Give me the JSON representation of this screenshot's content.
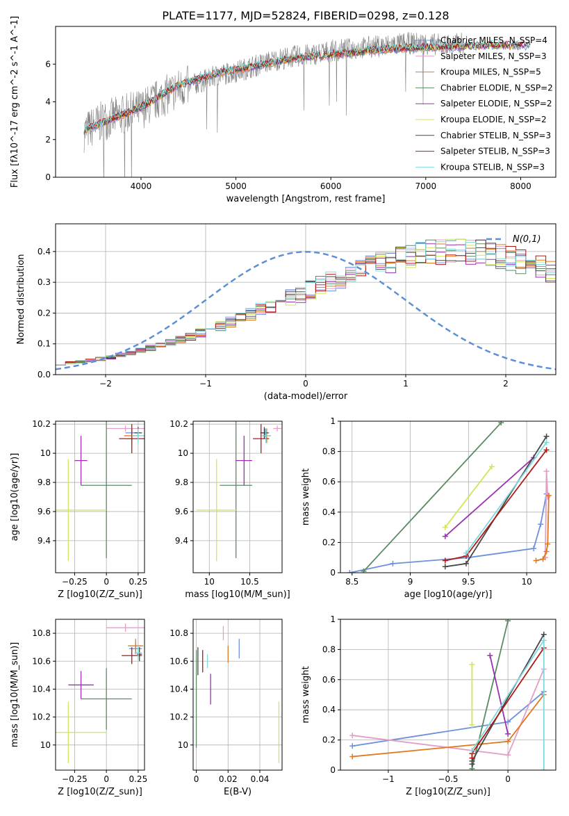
{
  "title": "PLATE=1177, MJD=52824, FIBERID=0298, z=0.128",
  "model_colors": {
    "Chabrier MILES": "#6e8fdc",
    "Salpeter MILES": "#e39ec8",
    "Kroupa MILES": "#e0781e",
    "Chabrier ELODIE": "#5a8a62",
    "Salpeter ELODIE": "#9a2fb0",
    "Kroupa ELODIE": "#cfe65a",
    "Chabrier STELIB": "#474747",
    "Salpeter STELIB": "#b01818",
    "Kroupa STELIB": "#7fd8dc"
  },
  "chart_data": [
    {
      "type": "line",
      "id": "spectrum",
      "title": "PLATE=1177, MJD=52824, FIBERID=0298, z=0.128",
      "xlabel": "wavelength [Angstrom, rest frame]",
      "ylabel": "Flux [fλ10^-17 erg cm^-2 s^-1 A^-1]",
      "xlim": [
        3100,
        8370
      ],
      "ylim": [
        0,
        8
      ],
      "xticks": [
        4000,
        5000,
        6000,
        7000,
        8000
      ],
      "yticks": [
        0,
        2,
        4,
        6
      ],
      "legend_location": "upper right",
      "legend": [
        "Chabrier MILES, N_SSP=4",
        "Salpeter MILES, N_SSP=3",
        "Kroupa MILES, N_SSP=5",
        "Chabrier ELODIE, N_SSP=2",
        "Salpeter ELODIE, N_SSP=2",
        "Kroupa ELODIE, N_SSP=2",
        "Chabrier STELIB, N_SSP=3",
        "Salpeter STELIB, N_SSP=3",
        "Kroupa STELIB, N_SSP=3"
      ],
      "data_series": {
        "name": "data",
        "color": "#808080",
        "x": [
          3400,
          3600,
          3800,
          4000,
          4200,
          4400,
          4600,
          4800,
          5000,
          5200,
          5400,
          5600,
          5800,
          6000,
          6200,
          6400,
          6600,
          6800,
          7000,
          7200,
          7400
        ],
        "y": [
          2.4,
          3.0,
          3.3,
          3.6,
          4.2,
          4.7,
          5.0,
          5.4,
          5.6,
          5.9,
          6.2,
          6.4,
          6.5,
          6.7,
          6.8,
          6.9,
          7.0,
          7.1,
          7.1,
          7.0,
          7.1
        ]
      },
      "model_curve": {
        "x": [
          3400,
          3600,
          3800,
          4000,
          4200,
          4400,
          4600,
          4800,
          5000,
          5200,
          5400,
          5600,
          5800,
          6000,
          6200,
          6400,
          6600,
          6800,
          7000,
          7200,
          7400,
          7600,
          7800,
          8000,
          8100
        ],
        "y": [
          2.5,
          2.9,
          3.3,
          3.7,
          4.3,
          4.9,
          5.2,
          5.5,
          5.7,
          5.9,
          6.1,
          6.3,
          6.4,
          6.5,
          6.6,
          6.7,
          6.8,
          6.85,
          6.9,
          6.9,
          6.95,
          7.0,
          7.0,
          7.0,
          7.0
        ]
      }
    },
    {
      "type": "histogram",
      "id": "residuals",
      "xlabel": "(data-model)/error",
      "ylabel": "Normed distribution",
      "xlim": [
        -2.5,
        2.5
      ],
      "ylim": [
        0,
        0.49
      ],
      "xticks": [
        -2,
        -1,
        0,
        1,
        2
      ],
      "yticks": [
        0.0,
        0.1,
        0.2,
        0.3,
        0.4
      ],
      "reference_curve": "N(0,1)",
      "legend": [
        "N(0,1)"
      ],
      "legend_location": "upper right",
      "bin_width": 0.1,
      "base_values": [
        0.035,
        0.038,
        0.042,
        0.046,
        0.051,
        0.057,
        0.063,
        0.07,
        0.078,
        0.086,
        0.095,
        0.104,
        0.114,
        0.125,
        0.136,
        0.148,
        0.16,
        0.172,
        0.185,
        0.198,
        0.211,
        0.224,
        0.237,
        0.25,
        0.263,
        0.276,
        0.289,
        0.302,
        0.314,
        0.326,
        0.338,
        0.349,
        0.36,
        0.37,
        0.378,
        0.386,
        0.392,
        0.396,
        0.399,
        0.4,
        0.4,
        0.398,
        0.395,
        0.39,
        0.384,
        0.376,
        0.368,
        0.358,
        0.348,
        0.337
      ]
    },
    {
      "type": "scatter",
      "id": "age_vs_Z",
      "xlabel": "Z [log10(Z/Z_sun)]",
      "ylabel": "age [log10(age/yr)]",
      "xlim": [
        -0.4,
        0.3
      ],
      "ylim": [
        9.18,
        10.22
      ],
      "xticks": [
        -0.25,
        0.0,
        0.25
      ],
      "yticks": [
        9.4,
        9.6,
        9.8,
        10.0,
        10.2
      ],
      "points": [
        {
          "model": "Chabrier MILES",
          "x": 0.2,
          "y": 10.14,
          "xerr": 0.05,
          "yerr": 0.03
        },
        {
          "model": "Salpeter MILES",
          "x": 0.15,
          "y": 10.17,
          "xerr": 0.15,
          "yerr": 0.02
        },
        {
          "model": "Kroupa MILES",
          "x": 0.2,
          "y": 10.12,
          "xerr": 0.06,
          "yerr": 0.05
        },
        {
          "model": "Chabrier ELODIE",
          "x": 0.0,
          "y": 9.78,
          "xerr": 0.2,
          "yerr": 0.5
        },
        {
          "model": "Salpeter ELODIE",
          "x": -0.2,
          "y": 9.95,
          "xerr": 0.05,
          "yerr": 0.17
        },
        {
          "model": "Kroupa ELODIE",
          "x": -0.3,
          "y": 9.61,
          "xerr": 0.3,
          "yerr": 0.35
        },
        {
          "model": "Chabrier STELIB",
          "x": 0.25,
          "y": 10.14,
          "xerr": 0.03,
          "yerr": 0.04
        },
        {
          "model": "Salpeter STELIB",
          "x": 0.2,
          "y": 10.1,
          "xerr": 0.1,
          "yerr": 0.1
        },
        {
          "model": "Kroupa STELIB",
          "x": 0.25,
          "y": 10.12,
          "xerr": 0.05,
          "yerr": 0.05
        }
      ]
    },
    {
      "type": "scatter",
      "id": "age_vs_mass",
      "xlabel": "mass [log10(M/M_sun)]",
      "ylabel": "",
      "xlim": [
        9.8,
        10.9
      ],
      "ylim": [
        9.18,
        10.22
      ],
      "xticks": [
        10.0,
        10.5
      ],
      "yticks": [
        9.4,
        9.6,
        9.8,
        10.0,
        10.2
      ],
      "points": [
        {
          "model": "Chabrier MILES",
          "x": 10.69,
          "y": 10.14,
          "xerr": 0.05,
          "yerr": 0.03
        },
        {
          "model": "Salpeter MILES",
          "x": 10.84,
          "y": 10.17,
          "xerr": 0.05,
          "yerr": 0.02
        },
        {
          "model": "Kroupa MILES",
          "x": 10.71,
          "y": 10.12,
          "xerr": 0.05,
          "yerr": 0.05
        },
        {
          "model": "Chabrier ELODIE",
          "x": 10.33,
          "y": 9.78,
          "xerr": 0.2,
          "yerr": 0.5
        },
        {
          "model": "Salpeter ELODIE",
          "x": 10.43,
          "y": 9.95,
          "xerr": 0.1,
          "yerr": 0.17
        },
        {
          "model": "Kroupa ELODIE",
          "x": 10.09,
          "y": 9.61,
          "xerr": 0.25,
          "yerr": 0.35
        },
        {
          "model": "Chabrier STELIB",
          "x": 10.68,
          "y": 10.14,
          "xerr": 0.05,
          "yerr": 0.04
        },
        {
          "model": "Salpeter STELIB",
          "x": 10.64,
          "y": 10.1,
          "xerr": 0.1,
          "yerr": 0.1
        },
        {
          "model": "Kroupa STELIB",
          "x": 10.7,
          "y": 10.12,
          "xerr": 0.05,
          "yerr": 0.05
        }
      ]
    },
    {
      "type": "line",
      "id": "massweight_vs_age",
      "xlabel": "age [log10(age/yr)]",
      "ylabel": "mass weight",
      "xlim": [
        8.4,
        10.25
      ],
      "ylim": [
        0,
        1
      ],
      "xticks": [
        8.5,
        9.0,
        9.5,
        10.0
      ],
      "yticks": [
        0.0,
        0.2,
        0.4,
        0.6,
        0.8,
        1.0
      ],
      "series": [
        {
          "model": "Chabrier MILES",
          "x": [
            8.48,
            8.85,
            9.5,
            10.06,
            10.12,
            10.17
          ],
          "y": [
            0.0,
            0.06,
            0.1,
            0.16,
            0.32,
            0.52
          ]
        },
        {
          "model": "Salpeter MILES",
          "x": [
            10.16,
            10.17,
            10.18
          ],
          "y": [
            0.1,
            0.67,
            0.5
          ]
        },
        {
          "model": "Kroupa MILES",
          "x": [
            10.08,
            10.14,
            10.17,
            10.18,
            10.19
          ],
          "y": [
            0.08,
            0.09,
            0.14,
            0.19,
            0.51
          ]
        },
        {
          "model": "Chabrier ELODIE",
          "x": [
            8.6,
            9.78
          ],
          "y": [
            0.01,
            0.99
          ]
        },
        {
          "model": "Salpeter ELODIE",
          "x": [
            9.3,
            10.06
          ],
          "y": [
            0.24,
            0.76
          ]
        },
        {
          "model": "Kroupa ELODIE",
          "x": [
            9.3,
            9.7
          ],
          "y": [
            0.3,
            0.7
          ]
        },
        {
          "model": "Chabrier STELIB",
          "x": [
            9.3,
            9.48,
            10.17
          ],
          "y": [
            0.04,
            0.06,
            0.9
          ]
        },
        {
          "model": "Salpeter STELIB",
          "x": [
            9.3,
            9.48,
            10.17
          ],
          "y": [
            0.08,
            0.11,
            0.81
          ]
        },
        {
          "model": "Kroupa STELIB",
          "x": [
            9.48,
            10.17
          ],
          "y": [
            0.13,
            0.86
          ]
        }
      ]
    },
    {
      "type": "scatter",
      "id": "mass_vs_Z",
      "xlabel": "Z [log10(Z/Z_sun)]",
      "ylabel": "mass [log10(M/M_sun)]",
      "xlim": [
        -0.4,
        0.3
      ],
      "ylim": [
        9.82,
        10.9
      ],
      "xticks": [
        -0.25,
        0.0,
        0.25
      ],
      "yticks": [
        10.0,
        10.2,
        10.4,
        10.6,
        10.8
      ],
      "points": [
        {
          "model": "Chabrier MILES",
          "x": 0.23,
          "y": 10.69,
          "xerr": 0.05,
          "yerr": 0.04
        },
        {
          "model": "Salpeter MILES",
          "x": 0.15,
          "y": 10.84,
          "xerr": 0.15,
          "yerr": 0.03
        },
        {
          "model": "Kroupa MILES",
          "x": 0.23,
          "y": 10.71,
          "xerr": 0.06,
          "yerr": 0.05
        },
        {
          "model": "Chabrier ELODIE",
          "x": 0.0,
          "y": 10.33,
          "xerr": 0.2,
          "yerr": 0.22
        },
        {
          "model": "Salpeter ELODIE",
          "x": -0.2,
          "y": 10.43,
          "xerr": 0.1,
          "yerr": 0.1
        },
        {
          "model": "Kroupa ELODIE",
          "x": -0.3,
          "y": 10.09,
          "xerr": 0.3,
          "yerr": 0.22
        },
        {
          "model": "Chabrier STELIB",
          "x": 0.26,
          "y": 10.65,
          "xerr": 0.02,
          "yerr": 0.05
        },
        {
          "model": "Salpeter STELIB",
          "x": 0.2,
          "y": 10.64,
          "xerr": 0.08,
          "yerr": 0.06
        },
        {
          "model": "Kroupa STELIB",
          "x": 0.25,
          "y": 10.66,
          "xerr": 0.03,
          "yerr": 0.05
        }
      ]
    },
    {
      "type": "scatter",
      "id": "mass_vs_ebv",
      "xlabel": "E(B-V)",
      "ylabel": "",
      "xlim": [
        -0.002,
        0.054
      ],
      "ylim": [
        9.82,
        10.9
      ],
      "xticks": [
        0.0,
        0.02,
        0.04
      ],
      "yticks": [
        10.0,
        10.2,
        10.4,
        10.6,
        10.8
      ],
      "points": [
        {
          "model": "Chabrier MILES",
          "x": 0.027,
          "y": 10.69,
          "xerr": 0,
          "yerr": 0.07
        },
        {
          "model": "Salpeter MILES",
          "x": 0.017,
          "y": 10.8,
          "xerr": 0,
          "yerr": 0.05
        },
        {
          "model": "Kroupa MILES",
          "x": 0.02,
          "y": 10.65,
          "xerr": 0,
          "yerr": 0.06
        },
        {
          "model": "Chabrier ELODIE",
          "x": 0.0,
          "y": 10.33,
          "xerr": 0,
          "yerr": 0.35
        },
        {
          "model": "Salpeter ELODIE",
          "x": 0.009,
          "y": 10.4,
          "xerr": 0,
          "yerr": 0.11
        },
        {
          "model": "Kroupa ELODIE",
          "x": 0.052,
          "y": 10.09,
          "xerr": 0,
          "yerr": 0.22
        },
        {
          "model": "Chabrier STELIB",
          "x": 0.001,
          "y": 10.6,
          "xerr": 0,
          "yerr": 0.1
        },
        {
          "model": "Salpeter STELIB",
          "x": 0.004,
          "y": 10.6,
          "xerr": 0,
          "yerr": 0.08
        },
        {
          "model": "Kroupa STELIB",
          "x": 0.007,
          "y": 10.6,
          "xerr": 0,
          "yerr": 0.05
        }
      ]
    },
    {
      "type": "line",
      "id": "massweight_vs_Z",
      "xlabel": "Z [log10(Z/Z_sun)]",
      "ylabel": "mass weight",
      "xlim": [
        -1.4,
        0.4
      ],
      "ylim": [
        0,
        1
      ],
      "xticks": [
        -1.0,
        -0.5,
        0.0
      ],
      "yticks": [
        0.0,
        0.2,
        0.4,
        0.6,
        0.8,
        1.0
      ],
      "series": [
        {
          "model": "Chabrier MILES",
          "x": [
            -1.3,
            0.0,
            0.3
          ],
          "y": [
            0.16,
            0.32,
            0.52
          ]
        },
        {
          "model": "Salpeter MILES",
          "x": [
            -1.3,
            0.0,
            0.3
          ],
          "y": [
            0.23,
            0.1,
            0.67
          ]
        },
        {
          "model": "Kroupa MILES",
          "x": [
            -1.3,
            0.0,
            0.3
          ],
          "y": [
            0.09,
            0.19,
            0.5
          ]
        },
        {
          "model": "Chabrier ELODIE",
          "x": [
            -0.3,
            0.0
          ],
          "y": [
            0.01,
            0.99
          ]
        },
        {
          "model": "Salpeter ELODIE",
          "x": [
            -0.15,
            0.0
          ],
          "y": [
            0.76,
            0.24
          ]
        },
        {
          "model": "Kroupa ELODIE",
          "x": [
            -0.3,
            -0.3
          ],
          "y": [
            0.3,
            0.7
          ]
        },
        {
          "model": "Chabrier STELIB",
          "x": [
            -0.3,
            -0.3,
            0.3
          ],
          "y": [
            0.04,
            0.06,
            0.9
          ]
        },
        {
          "model": "Salpeter STELIB",
          "x": [
            -0.3,
            -0.3,
            0.3
          ],
          "y": [
            0.08,
            0.11,
            0.81
          ]
        },
        {
          "model": "Kroupa STELIB",
          "x": [
            -0.3,
            0.3,
            0.3
          ],
          "y": [
            0.13,
            0.86,
            0.0
          ]
        }
      ]
    }
  ]
}
